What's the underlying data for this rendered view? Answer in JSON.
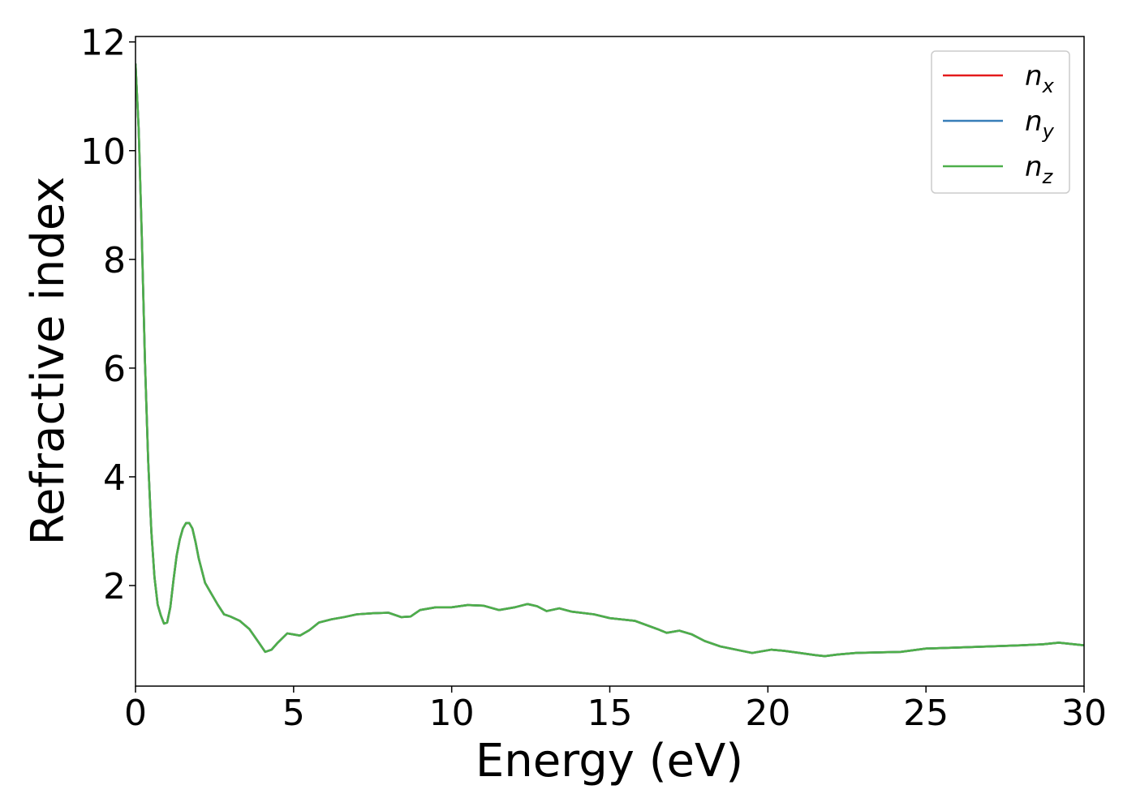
{
  "chart_data": {
    "type": "line",
    "xlabel": "Energy (eV)",
    "ylabel": "Refractive index",
    "xlim": [
      0,
      30
    ],
    "ylim": [
      0.15,
      12.1
    ],
    "xticks": [
      "0",
      "5",
      "10",
      "15",
      "20",
      "25",
      "30"
    ],
    "yticks": [
      "2",
      "4",
      "6",
      "8",
      "10",
      "12"
    ],
    "grid": false,
    "legend_position": "top-right",
    "series": [
      {
        "name": "n_x",
        "label_base": "n",
        "label_sub": "x",
        "color": "#e41a1c",
        "x": [
          0,
          0.1,
          0.2,
          0.3,
          0.4,
          0.5,
          0.6,
          0.7,
          0.8,
          0.9,
          1.0,
          1.1,
          1.2,
          1.3,
          1.4,
          1.5,
          1.6,
          1.7,
          1.8,
          1.9,
          2.0,
          2.2,
          2.4,
          2.6,
          2.8,
          3.0,
          3.3,
          3.6,
          3.9,
          4.1,
          4.3,
          4.5,
          4.8,
          5.0,
          5.2,
          5.5,
          5.8,
          6.2,
          6.6,
          7.0,
          7.5,
          8.0,
          8.4,
          8.7,
          9.0,
          9.5,
          10.0,
          10.5,
          11.0,
          11.5,
          12.0,
          12.4,
          12.7,
          13.0,
          13.4,
          13.8,
          14.5,
          15.0,
          15.8,
          16.5,
          16.8,
          17.2,
          17.6,
          18.0,
          18.5,
          19.0,
          19.5,
          20.1,
          20.5,
          21.0,
          21.5,
          21.8,
          22.2,
          22.8,
          23.5,
          24.2,
          25.0,
          26.0,
          27.0,
          28.0,
          28.7,
          29.2,
          30.0
        ],
        "values": [
          11.6,
          10.4,
          8.4,
          6.1,
          4.3,
          3.0,
          2.15,
          1.65,
          1.45,
          1.3,
          1.32,
          1.6,
          2.1,
          2.55,
          2.85,
          3.05,
          3.15,
          3.15,
          3.05,
          2.8,
          2.5,
          2.05,
          1.85,
          1.65,
          1.47,
          1.43,
          1.35,
          1.2,
          0.95,
          0.78,
          0.82,
          0.95,
          1.12,
          1.1,
          1.08,
          1.18,
          1.32,
          1.38,
          1.42,
          1.47,
          1.49,
          1.5,
          1.42,
          1.43,
          1.55,
          1.6,
          1.6,
          1.64,
          1.63,
          1.55,
          1.6,
          1.66,
          1.62,
          1.53,
          1.58,
          1.52,
          1.47,
          1.4,
          1.35,
          1.2,
          1.13,
          1.17,
          1.1,
          0.98,
          0.88,
          0.82,
          0.76,
          0.82,
          0.8,
          0.76,
          0.72,
          0.7,
          0.73,
          0.76,
          0.77,
          0.78,
          0.84,
          0.86,
          0.88,
          0.9,
          0.92,
          0.95,
          0.9
        ]
      },
      {
        "name": "n_y",
        "label_base": "n",
        "label_sub": "y",
        "color": "#377eb8",
        "x": [
          0,
          0.1,
          0.2,
          0.3,
          0.4,
          0.5,
          0.6,
          0.7,
          0.8,
          0.9,
          1.0,
          1.1,
          1.2,
          1.3,
          1.4,
          1.5,
          1.6,
          1.7,
          1.8,
          1.9,
          2.0,
          2.2,
          2.4,
          2.6,
          2.8,
          3.0,
          3.3,
          3.6,
          3.9,
          4.1,
          4.3,
          4.5,
          4.8,
          5.0,
          5.2,
          5.5,
          5.8,
          6.2,
          6.6,
          7.0,
          7.5,
          8.0,
          8.4,
          8.7,
          9.0,
          9.5,
          10.0,
          10.5,
          11.0,
          11.5,
          12.0,
          12.4,
          12.7,
          13.0,
          13.4,
          13.8,
          14.5,
          15.0,
          15.8,
          16.5,
          16.8,
          17.2,
          17.6,
          18.0,
          18.5,
          19.0,
          19.5,
          20.1,
          20.5,
          21.0,
          21.5,
          21.8,
          22.2,
          22.8,
          23.5,
          24.2,
          25.0,
          26.0,
          27.0,
          28.0,
          28.7,
          29.2,
          30.0
        ],
        "values": [
          11.6,
          10.4,
          8.4,
          6.1,
          4.3,
          3.0,
          2.15,
          1.65,
          1.45,
          1.3,
          1.32,
          1.6,
          2.1,
          2.55,
          2.85,
          3.05,
          3.15,
          3.15,
          3.05,
          2.8,
          2.5,
          2.05,
          1.85,
          1.65,
          1.47,
          1.43,
          1.35,
          1.2,
          0.95,
          0.78,
          0.82,
          0.95,
          1.12,
          1.1,
          1.08,
          1.18,
          1.32,
          1.38,
          1.42,
          1.47,
          1.49,
          1.5,
          1.42,
          1.43,
          1.55,
          1.6,
          1.6,
          1.64,
          1.63,
          1.55,
          1.6,
          1.66,
          1.62,
          1.53,
          1.58,
          1.52,
          1.47,
          1.4,
          1.35,
          1.2,
          1.13,
          1.17,
          1.1,
          0.98,
          0.88,
          0.82,
          0.76,
          0.82,
          0.8,
          0.76,
          0.72,
          0.7,
          0.73,
          0.76,
          0.77,
          0.78,
          0.84,
          0.86,
          0.88,
          0.9,
          0.92,
          0.95,
          0.9
        ]
      },
      {
        "name": "n_z",
        "label_base": "n",
        "label_sub": "z",
        "color": "#4daf4a",
        "x": [
          0,
          0.1,
          0.2,
          0.3,
          0.4,
          0.5,
          0.6,
          0.7,
          0.8,
          0.9,
          1.0,
          1.1,
          1.2,
          1.3,
          1.4,
          1.5,
          1.6,
          1.7,
          1.8,
          1.9,
          2.0,
          2.2,
          2.4,
          2.6,
          2.8,
          3.0,
          3.3,
          3.6,
          3.9,
          4.1,
          4.3,
          4.5,
          4.8,
          5.0,
          5.2,
          5.5,
          5.8,
          6.2,
          6.6,
          7.0,
          7.5,
          8.0,
          8.4,
          8.7,
          9.0,
          9.5,
          10.0,
          10.5,
          11.0,
          11.5,
          12.0,
          12.4,
          12.7,
          13.0,
          13.4,
          13.8,
          14.5,
          15.0,
          15.8,
          16.5,
          16.8,
          17.2,
          17.6,
          18.0,
          18.5,
          19.0,
          19.5,
          20.1,
          20.5,
          21.0,
          21.5,
          21.8,
          22.2,
          22.8,
          23.5,
          24.2,
          25.0,
          26.0,
          27.0,
          28.0,
          28.7,
          29.2,
          30.0
        ],
        "values": [
          11.6,
          10.4,
          8.4,
          6.1,
          4.3,
          3.0,
          2.15,
          1.65,
          1.45,
          1.3,
          1.32,
          1.6,
          2.1,
          2.55,
          2.85,
          3.05,
          3.15,
          3.15,
          3.05,
          2.8,
          2.5,
          2.05,
          1.85,
          1.65,
          1.47,
          1.43,
          1.35,
          1.2,
          0.95,
          0.78,
          0.82,
          0.95,
          1.12,
          1.1,
          1.08,
          1.18,
          1.32,
          1.38,
          1.42,
          1.47,
          1.49,
          1.5,
          1.42,
          1.43,
          1.55,
          1.6,
          1.6,
          1.64,
          1.63,
          1.55,
          1.6,
          1.66,
          1.62,
          1.53,
          1.58,
          1.52,
          1.47,
          1.4,
          1.35,
          1.2,
          1.13,
          1.17,
          1.1,
          0.98,
          0.88,
          0.82,
          0.76,
          0.82,
          0.8,
          0.76,
          0.72,
          0.7,
          0.73,
          0.76,
          0.77,
          0.78,
          0.84,
          0.86,
          0.88,
          0.9,
          0.92,
          0.95,
          0.9
        ]
      }
    ]
  }
}
